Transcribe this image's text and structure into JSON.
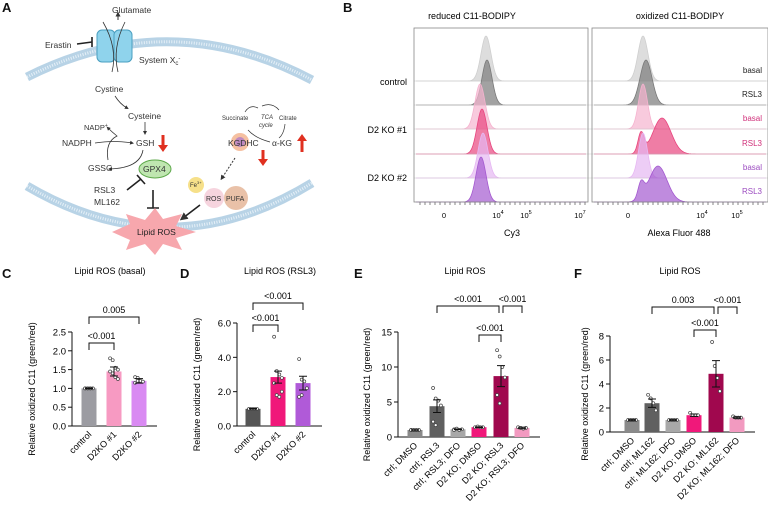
{
  "panels": {
    "A": "A",
    "B": "B",
    "C": "C",
    "D": "D",
    "E": "E",
    "F": "F"
  },
  "diagram": {
    "glutamate": "Glutamate",
    "erastin": "Erastin",
    "system": "System X",
    "system_sub": "c",
    "system_sup": "-",
    "cystine": "Cystine",
    "cysteine": "Cysteine",
    "nadp": "NADP",
    "nadp_sup": "+",
    "nadph": "NADPH",
    "gsh": "GSH",
    "gssg": "GSSG",
    "gpx4": "GPX4",
    "rsl3": "RSL3",
    "ml162": "ML162",
    "lipid_ros": "Lipid ROS",
    "succinate": "Succinate",
    "tca1": "TCA",
    "tca2": "cycle",
    "citrate": "Citrate",
    "akg": "α-KG",
    "kgdhc": "KGDHC",
    "fe": "Fe",
    "fe_sup": "3+",
    "ros": "ROS",
    "pufa": "PUFA",
    "colors": {
      "membrane": "#b8d3e6",
      "channel": "#8fd3ec",
      "gpx4": "#bfe6b0",
      "arrow_red": "#e03020",
      "lipid_ros": "#f7a7ad"
    }
  },
  "flow": {
    "col_titles": [
      "reduced C11-BODIPY",
      "oxidized C11-BODIPY"
    ],
    "x_labels": [
      "Cy3",
      "Alexa Fluor 488"
    ],
    "x_ticks_left": [
      "0",
      "10",
      "4",
      "10",
      "5",
      "10",
      "7"
    ],
    "x_ticks_right": [
      "0",
      "10",
      "4",
      "10",
      "5"
    ],
    "groups": [
      "control",
      "D2 KO #1",
      "D2 KO #2"
    ],
    "rows": [
      {
        "label": "basal",
        "color": "#cfcfcf",
        "label_color": "#222"
      },
      {
        "label": "RSL3",
        "color": "#7a7a7a",
        "label_color": "#222"
      },
      {
        "label": "basal",
        "color": "#f5b3cf",
        "label_color": "#d0307a"
      },
      {
        "label": "RSL3",
        "color": "#e8467f",
        "label_color": "#d0307a"
      },
      {
        "label": "basal",
        "color": "#e6b8f2",
        "label_color": "#9c4cc0"
      },
      {
        "label": "RSL3",
        "color": "#a45ad0",
        "label_color": "#9c4cc0"
      }
    ]
  },
  "chart_data": [
    {
      "type": "bar",
      "panel": "C",
      "title": "Lipid ROS (basal)",
      "ylabel": "Relative oxidized C11 (green/red)",
      "ylim": [
        0,
        2.5
      ],
      "yticks": [
        "0.0",
        "0.5",
        "1.0",
        "1.5",
        "2.0",
        "2.5"
      ],
      "categories": [
        "control",
        "D2KO #1",
        "D2KO #2"
      ],
      "values": [
        1.0,
        1.45,
        1.2
      ],
      "errors": [
        0.01,
        0.12,
        0.06
      ],
      "colors": [
        "#9c9ca2",
        "#f79ac2",
        "#d98af2"
      ],
      "points": [
        [
          1,
          1,
          1,
          1,
          1,
          1,
          1
        ],
        [
          1.8,
          1.75,
          1.55,
          1.5,
          1.45,
          1.4,
          1.3,
          1.25
        ],
        [
          1.3,
          1.28,
          1.2,
          1.18,
          1.15,
          1.2
        ]
      ],
      "comparisons": [
        {
          "from": 0,
          "to": 1,
          "label": "<0.001"
        },
        {
          "from": 0,
          "to": 2,
          "label": "0.005"
        }
      ]
    },
    {
      "type": "bar",
      "panel": "D",
      "title": "Lipid ROS (RSL3)",
      "ylabel": "Relative oxidized C11 (green/red)",
      "ylim": [
        0,
        6
      ],
      "yticks": [
        "0.0",
        "2.0",
        "4.0",
        "6.0"
      ],
      "categories": [
        "control",
        "D2KO #1",
        "D2KO #2"
      ],
      "values": [
        1.0,
        2.85,
        2.5
      ],
      "errors": [
        0.02,
        0.35,
        0.4
      ],
      "colors": [
        "#555555",
        "#f0187a",
        "#b05ad8"
      ],
      "points": [
        [
          1,
          1,
          1,
          1,
          1
        ],
        [
          5.2,
          3.2,
          3.0,
          2.8,
          2.5,
          1.8,
          1.7,
          2.0
        ],
        [
          3.9,
          2.7,
          2.6,
          2.2,
          1.7,
          1.8
        ]
      ],
      "comparisons": [
        {
          "from": 0,
          "to": 1,
          "label": "<0.001"
        },
        {
          "from": 0,
          "to": 2,
          "label": "<0.001"
        }
      ]
    },
    {
      "type": "bar",
      "panel": "E",
      "title": "Lipid ROS",
      "ylabel": "Relative oxidized C11 (green/red)",
      "ylim": [
        0,
        15
      ],
      "yticks": [
        "0",
        "5",
        "10",
        "15"
      ],
      "categories": [
        "ctrl; DMSO",
        "ctrl; RSL3",
        "ctrl; RSL3; DFO",
        "D2 KO; DMSO",
        "D2 KO; RSL3",
        "D2 KO; RSL3; DFO"
      ],
      "values": [
        1.0,
        4.4,
        1.1,
        1.4,
        8.7,
        1.3
      ],
      "errors": [
        0.1,
        0.9,
        0.05,
        0.05,
        1.5,
        0.1
      ],
      "colors": [
        "#8a8a8a",
        "#606060",
        "#a8a8a8",
        "#f0187a",
        "#a0084e",
        "#f29ac0"
      ],
      "points": [
        [
          1,
          1,
          1,
          1,
          1
        ],
        [
          7.0,
          5.5,
          5.2,
          4.5,
          2.2,
          1.7
        ],
        [
          1.1,
          1.2,
          1.0,
          1.1,
          1.0
        ],
        [
          1.4,
          1.5,
          1.4,
          1.4
        ],
        [
          12.4,
          11.5,
          10,
          8.5,
          6,
          4.8
        ],
        [
          1.4,
          1.3,
          1.2,
          1.3
        ]
      ],
      "comparisons": [
        {
          "from": 1,
          "to": 4,
          "label": "<0.001"
        },
        {
          "from": 4,
          "to": 5,
          "label": "<0.001"
        },
        {
          "from": 3,
          "to": 4,
          "label": "<0.001"
        }
      ]
    },
    {
      "type": "bar",
      "panel": "F",
      "title": "Lipid ROS",
      "ylabel": "Relative oxidized C11 (green/red)",
      "ylim": [
        0,
        8
      ],
      "yticks": [
        "0",
        "2",
        "4",
        "6",
        "8"
      ],
      "categories": [
        "ctrl; DMSO",
        "ctrl; ML162",
        "ctrl; ML162; DFO",
        "D2 KO; DMSO",
        "D2 KO; ML162",
        "D2 KO; ML162; DFO"
      ],
      "values": [
        1.0,
        2.4,
        1.0,
        1.4,
        4.85,
        1.2
      ],
      "errors": [
        0.05,
        0.35,
        0.03,
        0.1,
        1.1,
        0.05
      ],
      "colors": [
        "#8a8a8a",
        "#606060",
        "#a8a8a8",
        "#f0187a",
        "#a0084e",
        "#f29ac0"
      ],
      "points": [
        [
          1,
          1,
          1,
          1
        ],
        [
          3.1,
          2.8,
          2.4,
          1.8
        ],
        [
          1,
          1,
          1,
          1
        ],
        [
          1.6,
          1.4,
          1.4,
          1.4
        ],
        [
          7.5,
          5.5,
          4.5,
          3.4
        ],
        [
          1.3,
          1.2,
          1.2,
          1.2
        ]
      ],
      "comparisons": [
        {
          "from": 1,
          "to": 4,
          "label": "0.003"
        },
        {
          "from": 4,
          "to": 5,
          "label": "<0.001"
        },
        {
          "from": 3,
          "to": 4,
          "label": "<0.001"
        }
      ]
    }
  ]
}
